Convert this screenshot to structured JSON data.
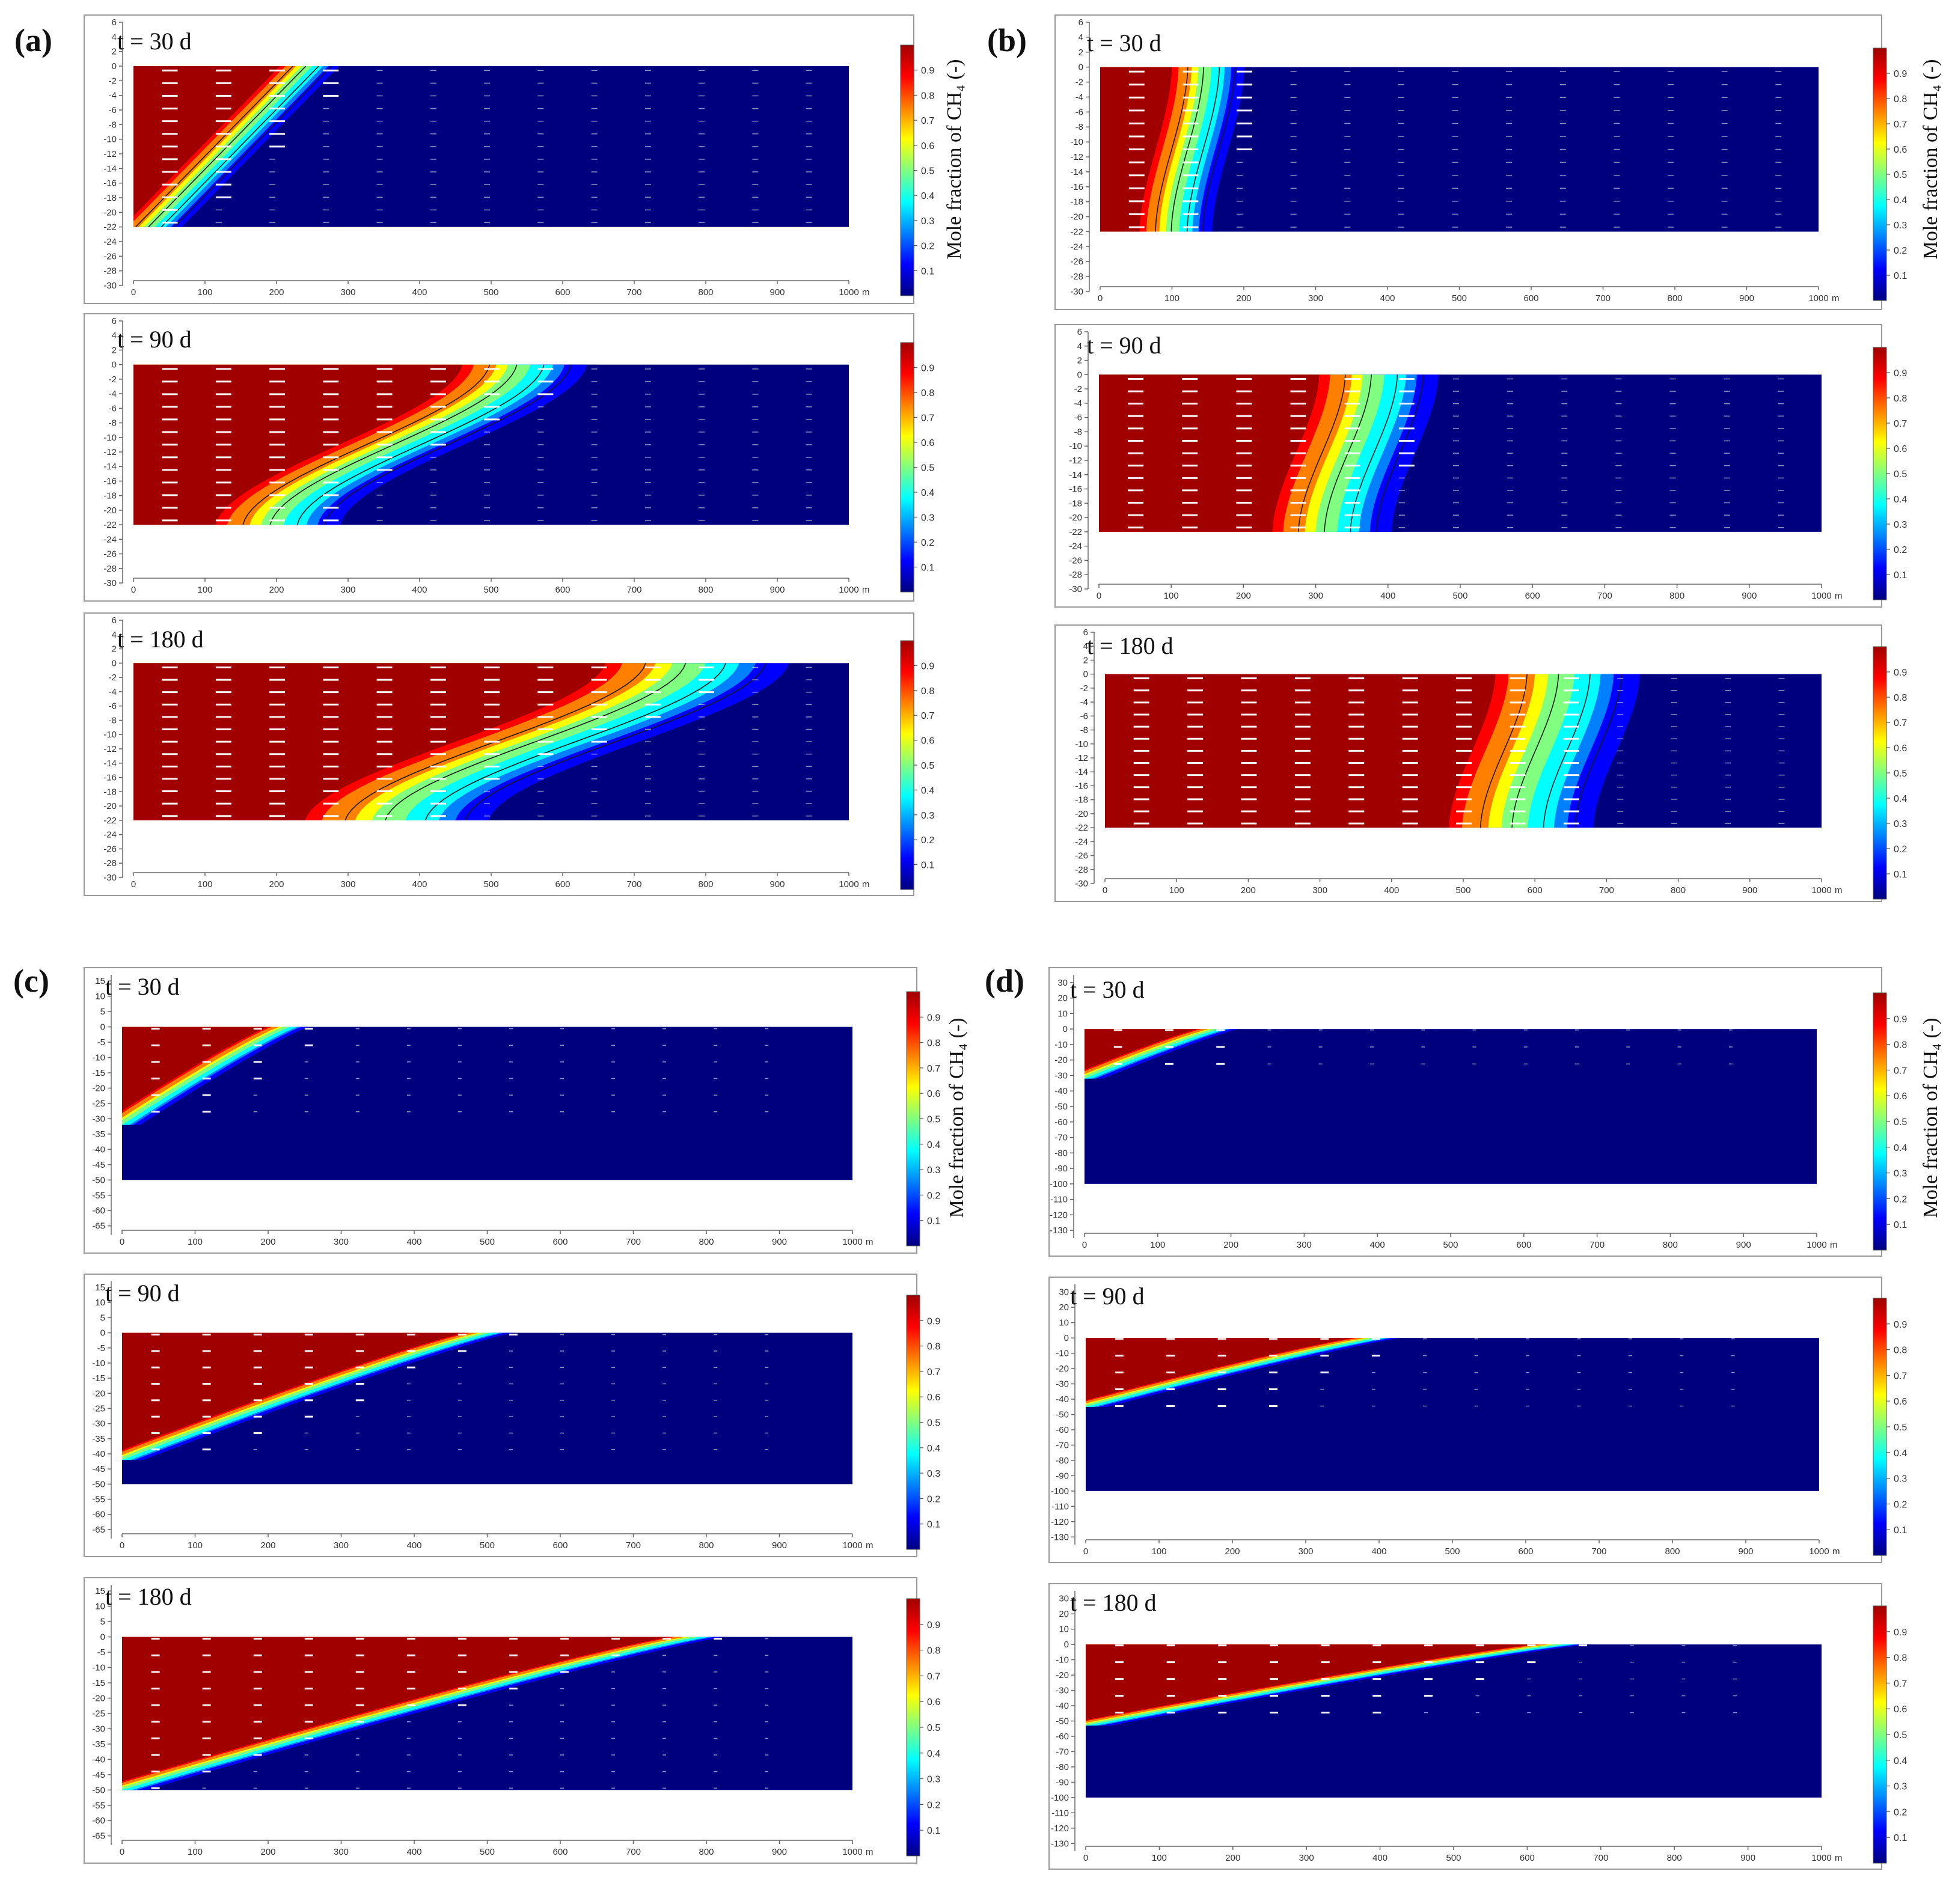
{
  "figure": {
    "colors": {
      "background_fluid": "#00007f",
      "colormap": [
        "#00007f",
        "#0000ff",
        "#0080ff",
        "#00ffff",
        "#80ff80",
        "#ffff00",
        "#ff8000",
        "#ff0000",
        "#a00000"
      ],
      "frame": "#999999",
      "arrow": "#ffffff"
    },
    "icons": [
      "arrow-glyph"
    ]
  },
  "chart_data": [
    {
      "panel": "(a)",
      "type": "heatmap",
      "colorbar_title": "Mole fraction of CH₄ (-)",
      "colorbar_ticks": [
        "0.1",
        "0.2",
        "0.3",
        "0.4",
        "0.5",
        "0.6",
        "0.7",
        "0.8",
        "0.9"
      ],
      "x_ticks": [
        "0",
        "100",
        "200",
        "300",
        "400",
        "500",
        "600",
        "700",
        "800",
        "900",
        "1000"
      ],
      "x_unit": "m",
      "y_ticks": [
        "6",
        "4",
        "2",
        "0",
        "-2",
        "-4",
        "-6",
        "-8",
        "-10",
        "-12",
        "-14",
        "-16",
        "-18",
        "-20",
        "-22",
        "-24",
        "-26",
        "-28",
        "-30"
      ],
      "ylim": [
        -30,
        6
      ],
      "xlim": [
        0,
        1000
      ],
      "domain_depth": -22,
      "subplots": [
        {
          "time": "t = 30 d",
          "front_top": 250,
          "front_bottom": 30,
          "width": 45,
          "shape": "linear"
        },
        {
          "time": "t = 90 d",
          "front_top": 555,
          "front_bottom": 210,
          "width": 95,
          "shape": "s"
        },
        {
          "time": "t = 180 d",
          "front_top": 800,
          "front_bottom": 380,
          "width": 140,
          "shape": "s"
        }
      ]
    },
    {
      "panel": "(b)",
      "type": "heatmap",
      "colorbar_title": "Mole fraction of CH₄ (-)",
      "colorbar_ticks": [
        "0.1",
        "0.2",
        "0.3",
        "0.4",
        "0.5",
        "0.6",
        "0.7",
        "0.8",
        "0.9"
      ],
      "x_ticks": [
        "0",
        "100",
        "200",
        "300",
        "400",
        "500",
        "600",
        "700",
        "800",
        "900",
        "1000"
      ],
      "x_unit": "m",
      "y_ticks": [
        "6",
        "4",
        "2",
        "0",
        "-2",
        "-4",
        "-6",
        "-8",
        "-10",
        "-12",
        "-14",
        "-16",
        "-18",
        "-20",
        "-22",
        "-24",
        "-26",
        "-28",
        "-30"
      ],
      "ylim": [
        -30,
        6
      ],
      "xlim": [
        0,
        1000
      ],
      "domain_depth": -22,
      "subplots": [
        {
          "time": "t = 30 d",
          "front_top": 155,
          "front_bottom": 110,
          "width": 55,
          "shape": "s"
        },
        {
          "time": "t = 90 d",
          "front_top": 395,
          "front_bottom": 330,
          "width": 90,
          "shape": "s"
        },
        {
          "time": "t = 180 d",
          "front_top": 655,
          "front_bottom": 590,
          "width": 110,
          "shape": "s"
        }
      ]
    },
    {
      "panel": "(c)",
      "type": "heatmap",
      "colorbar_title": "Mole fraction of CH₄ (-)",
      "colorbar_ticks": [
        "0.1",
        "0.2",
        "0.3",
        "0.4",
        "0.5",
        "0.6",
        "0.7",
        "0.8",
        "0.9"
      ],
      "x_ticks": [
        "0",
        "100",
        "200",
        "300",
        "400",
        "500",
        "600",
        "700",
        "800",
        "900",
        "1000"
      ],
      "x_unit": "m",
      "y_ticks": [
        "15",
        "10",
        "5",
        "0",
        "-5",
        "-10",
        "-15",
        "-20",
        "-25",
        "-30",
        "-35",
        "-40",
        "-45",
        "-50",
        "-55",
        "-60",
        "-65"
      ],
      "ylim": [
        -68,
        17
      ],
      "xlim": [
        0,
        1000
      ],
      "domain_depth": -50,
      "subplots": [
        {
          "time": "t = 30 d",
          "front_top": 230,
          "front_bottom": 0,
          "front_depth": -32,
          "width": 30,
          "shape": "wedge"
        },
        {
          "time": "t = 90 d",
          "front_top": 505,
          "front_bottom": 0,
          "front_depth": -42,
          "width": 35,
          "shape": "wedge"
        },
        {
          "time": "t = 180 d",
          "front_top": 790,
          "front_bottom": 0,
          "front_depth": -50,
          "width": 40,
          "shape": "wedge"
        }
      ]
    },
    {
      "panel": "(d)",
      "type": "heatmap",
      "colorbar_title": "Mole fraction of CH₄ (-)",
      "colorbar_ticks": [
        "0.1",
        "0.2",
        "0.3",
        "0.4",
        "0.5",
        "0.6",
        "0.7",
        "0.8",
        "0.9"
      ],
      "x_ticks": [
        "0",
        "100",
        "200",
        "300",
        "400",
        "500",
        "600",
        "700",
        "800",
        "900",
        "1000"
      ],
      "x_unit": "m",
      "y_ticks": [
        "30",
        "20",
        "10",
        "0",
        "-10",
        "-20",
        "-30",
        "-40",
        "-50",
        "-60",
        "-70",
        "-80",
        "-90",
        "-100",
        "-110",
        "-120",
        "-130"
      ],
      "ylim": [
        -135,
        35
      ],
      "xlim": [
        0,
        1000
      ],
      "domain_depth": -100,
      "subplots": [
        {
          "time": "t = 30 d",
          "front_top": 185,
          "front_bottom": 0,
          "front_depth": -32,
          "width": 30,
          "shape": "wedge"
        },
        {
          "time": "t = 90 d",
          "front_top": 400,
          "front_bottom": 0,
          "front_depth": -45,
          "width": 35,
          "shape": "wedge"
        },
        {
          "time": "t = 180 d",
          "front_top": 650,
          "front_bottom": 0,
          "front_depth": -53,
          "width": 40,
          "shape": "wedge"
        }
      ]
    }
  ]
}
